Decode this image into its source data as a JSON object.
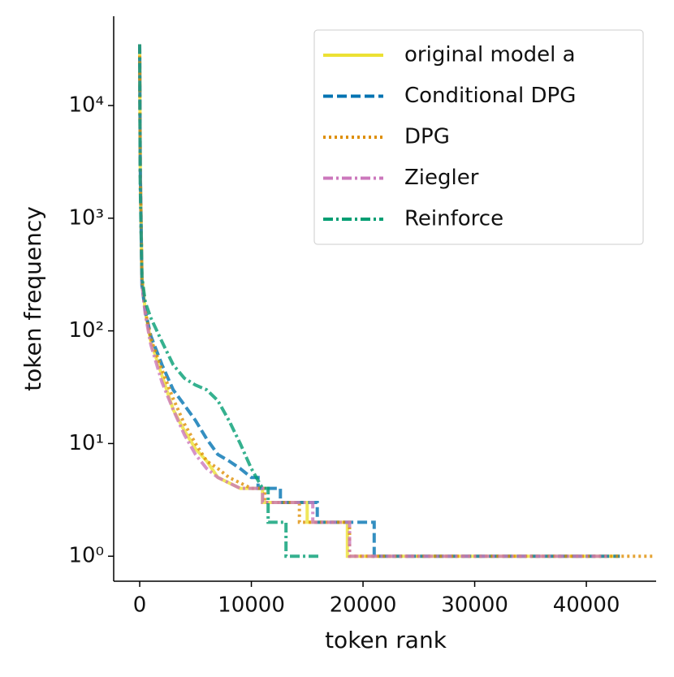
{
  "chart_data": {
    "type": "line",
    "x_label": "token rank",
    "y_label": "token frequency",
    "xlim": [
      -2330,
      46250
    ],
    "ylim": [
      0.6,
      62000
    ],
    "y_scale": "log",
    "xticks": [
      0,
      10000,
      20000,
      30000,
      40000
    ],
    "yticks": [
      {
        "value": 1,
        "label": "10⁰"
      },
      {
        "value": 10,
        "label": "10¹"
      },
      {
        "value": 100,
        "label": "10²"
      },
      {
        "value": 1000,
        "label": "10³"
      },
      {
        "value": 10000,
        "label": "10⁴"
      }
    ],
    "legend": "upper right",
    "series": [
      {
        "name": "original model a",
        "color": "#ece133",
        "linestyle": "solid",
        "x": [
          0,
          50,
          200,
          500,
          1000,
          2000,
          3000,
          4000,
          5000,
          6000,
          7000,
          9000,
          11000,
          11000,
          15000,
          15000,
          18600,
          18600,
          43000
        ],
        "values": [
          35000,
          3000,
          300,
          150,
          80,
          40,
          20,
          13,
          9,
          7,
          5,
          4,
          4,
          3,
          3,
          2,
          2,
          1,
          1
        ]
      },
      {
        "name": "Conditional DPG",
        "color": "#0173b2",
        "linestyle": "dashed",
        "x": [
          0,
          50,
          200,
          500,
          1000,
          2000,
          3000,
          4000,
          5000,
          6000,
          7000,
          8000,
          9000,
          10000,
          10600,
          10600,
          12600,
          12600,
          15900,
          15900,
          21000,
          21000,
          43000
        ],
        "values": [
          35000,
          3000,
          250,
          150,
          90,
          50,
          30,
          22,
          16,
          11,
          8,
          7,
          6,
          5,
          5,
          4,
          4,
          3,
          3,
          2,
          2,
          1,
          1
        ]
      },
      {
        "name": "DPG",
        "color": "#de8f05",
        "linestyle": "dotted",
        "x": [
          0,
          50,
          200,
          500,
          1000,
          2000,
          3000,
          4000,
          5000,
          6000,
          7000,
          8000,
          10000,
          11200,
          11200,
          14300,
          14300,
          18800,
          18800,
          46000
        ],
        "values": [
          35000,
          3000,
          280,
          150,
          85,
          45,
          25,
          15,
          10,
          7,
          6,
          5,
          4,
          4,
          3,
          3,
          2,
          2,
          1,
          1
        ]
      },
      {
        "name": "Ziegler",
        "color": "#cc78bc",
        "linestyle": "dashdot",
        "x": [
          0,
          50,
          200,
          500,
          1000,
          2000,
          3000,
          4000,
          5000,
          6000,
          7000,
          9000,
          11000,
          11000,
          15500,
          15500,
          18800,
          18800,
          42000
        ],
        "values": [
          35000,
          3000,
          260,
          140,
          75,
          35,
          20,
          12,
          8,
          6,
          5,
          4,
          4,
          3,
          3,
          2,
          2,
          1,
          1
        ]
      },
      {
        "name": "Reinforce",
        "color": "#029e73",
        "linestyle": "dashdot",
        "x": [
          0,
          50,
          200,
          500,
          1000,
          2000,
          3000,
          4000,
          5000,
          6000,
          7000,
          8000,
          9000,
          10000,
          11000,
          11500,
          11500,
          13100,
          13100,
          16000
        ],
        "values": [
          35000,
          2000,
          300,
          180,
          130,
          80,
          50,
          38,
          33,
          30,
          24,
          16,
          10,
          6,
          4,
          4,
          2,
          2,
          1,
          1
        ]
      }
    ]
  }
}
